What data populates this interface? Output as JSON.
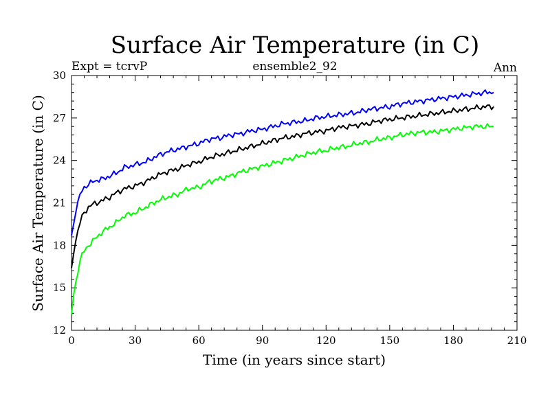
{
  "chart_data": {
    "type": "line",
    "title": "Surface Air Temperature (in C)",
    "left_label": "Expt = tcrvP",
    "center_label": "ensemble2_92",
    "right_label": "Ann",
    "xlabel": "Time (in years since start)",
    "ylabel": "Surface Air Temperature (in C)",
    "xlim": [
      0,
      210
    ],
    "ylim": [
      12,
      30
    ],
    "x_ticks": [
      0,
      30,
      60,
      90,
      120,
      150,
      180,
      210
    ],
    "y_ticks": [
      12,
      15,
      18,
      21,
      24,
      27,
      30
    ],
    "x_tick_labels": [
      "0",
      "30",
      "60",
      "90",
      "120",
      "150",
      "180",
      "210"
    ],
    "y_tick_labels": [
      "12",
      "15",
      "18",
      "21",
      "24",
      "27",
      "30"
    ],
    "grid": false,
    "series": [
      {
        "name": "blue",
        "color": "#0000ff",
        "x": [
          0,
          1,
          2,
          3,
          4,
          5,
          6,
          7,
          8,
          10,
          12,
          15,
          18,
          21,
          25,
          30,
          35,
          40,
          45,
          50,
          55,
          60,
          65,
          70,
          75,
          80,
          85,
          90,
          95,
          100,
          105,
          110,
          115,
          120,
          125,
          130,
          135,
          140,
          145,
          150,
          155,
          160,
          165,
          170,
          175,
          180,
          185,
          190,
          195,
          199
        ],
        "y": [
          18.7,
          19.5,
          20.3,
          21.0,
          21.5,
          21.9,
          22.1,
          22.2,
          22.3,
          22.5,
          22.6,
          22.7,
          22.9,
          23.1,
          23.5,
          23.7,
          23.9,
          24.3,
          24.6,
          24.8,
          25.0,
          25.2,
          25.5,
          25.6,
          25.8,
          25.9,
          26.1,
          26.2,
          26.4,
          26.6,
          26.7,
          26.8,
          27.0,
          27.1,
          27.2,
          27.3,
          27.4,
          27.6,
          27.7,
          27.8,
          28.0,
          28.1,
          28.2,
          28.3,
          28.4,
          28.5,
          28.6,
          28.7,
          28.8,
          28.8
        ]
      },
      {
        "name": "black",
        "color": "#000000",
        "x": [
          0,
          1,
          2,
          3,
          4,
          5,
          6,
          7,
          8,
          10,
          12,
          15,
          18,
          21,
          25,
          30,
          35,
          40,
          45,
          50,
          55,
          60,
          65,
          70,
          75,
          80,
          85,
          90,
          95,
          100,
          105,
          110,
          115,
          120,
          125,
          130,
          135,
          140,
          145,
          150,
          155,
          160,
          165,
          170,
          175,
          180,
          185,
          190,
          195,
          199
        ],
        "y": [
          16.4,
          17.4,
          18.3,
          19.0,
          19.6,
          20.0,
          20.3,
          20.5,
          20.7,
          20.9,
          21.0,
          21.2,
          21.4,
          21.7,
          22.0,
          22.2,
          22.5,
          22.9,
          23.2,
          23.4,
          23.7,
          23.9,
          24.2,
          24.4,
          24.6,
          24.8,
          25.0,
          25.2,
          25.4,
          25.6,
          25.7,
          25.9,
          26.0,
          26.1,
          26.3,
          26.4,
          26.5,
          26.6,
          26.8,
          26.9,
          27.0,
          27.1,
          27.2,
          27.3,
          27.4,
          27.5,
          27.6,
          27.7,
          27.8,
          27.8
        ]
      },
      {
        "name": "green",
        "color": "#00ff00",
        "x": [
          0,
          1,
          2,
          3,
          4,
          5,
          6,
          7,
          8,
          10,
          12,
          15,
          18,
          21,
          25,
          30,
          35,
          40,
          45,
          50,
          55,
          60,
          65,
          70,
          75,
          80,
          85,
          90,
          95,
          100,
          105,
          110,
          115,
          120,
          125,
          130,
          135,
          140,
          145,
          150,
          155,
          160,
          165,
          170,
          175,
          180,
          185,
          190,
          195,
          199
        ],
        "y": [
          13.1,
          14.5,
          15.4,
          16.2,
          16.9,
          17.3,
          17.6,
          17.8,
          18.0,
          18.3,
          18.6,
          19.0,
          19.3,
          19.6,
          20.1,
          20.3,
          20.7,
          21.1,
          21.4,
          21.6,
          22.0,
          22.1,
          22.5,
          22.7,
          22.9,
          23.2,
          23.4,
          23.6,
          23.8,
          24.0,
          24.2,
          24.4,
          24.6,
          24.7,
          24.9,
          25.0,
          25.2,
          25.3,
          25.5,
          25.6,
          25.8,
          25.9,
          26.0,
          26.0,
          26.1,
          26.2,
          26.3,
          26.4,
          26.4,
          26.4
        ]
      }
    ]
  }
}
